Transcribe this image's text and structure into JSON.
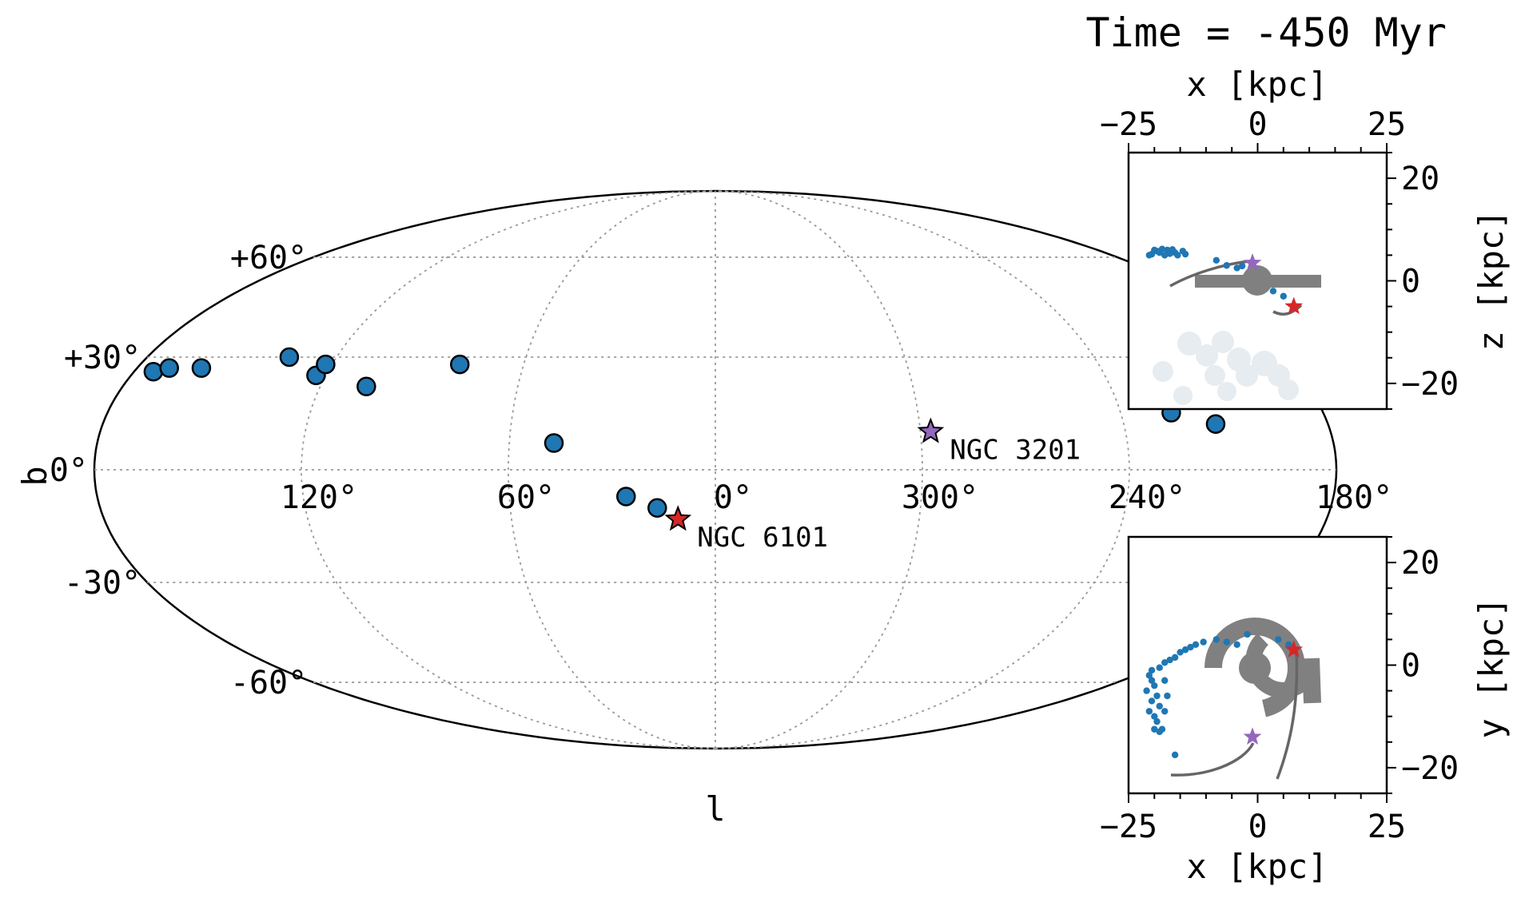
{
  "title": "Time = -450 Myr",
  "chart_data": [
    {
      "type": "scatter",
      "projection": "mollweide",
      "xlabel": "l",
      "ylabel": "b",
      "grid": true,
      "x_tick_labels": [
        "120°",
        "60°",
        "0°",
        "300°",
        "240°",
        "180°"
      ],
      "x_tick_values": [
        120,
        60,
        0,
        300,
        240,
        180
      ],
      "y_tick_labels": [
        "+60°",
        "+30°",
        "0°",
        "-30°",
        "-60°"
      ],
      "y_tick_values": [
        60,
        30,
        0,
        -30,
        -60
      ],
      "series": [
        {
          "marker": "circle",
          "color": "#1f77b4",
          "points": [
            {
              "l": 174,
              "b": 26
            },
            {
              "l": 170,
              "b": 27
            },
            {
              "l": 160,
              "b": 27
            },
            {
              "l": 135,
              "b": 30
            },
            {
              "l": 123,
              "b": 25
            },
            {
              "l": 122,
              "b": 28
            },
            {
              "l": 106,
              "b": 22
            },
            {
              "l": 80,
              "b": 28
            },
            {
              "l": 47,
              "b": 7
            },
            {
              "l": 26,
              "b": -7
            },
            {
              "l": 17,
              "b": -10
            },
            {
              "l": 225,
              "b": 15
            },
            {
              "l": 219,
              "b": 19
            },
            {
              "l": 213,
              "b": 12
            }
          ]
        },
        {
          "marker": "star",
          "color": "#d62728",
          "points": [
            {
              "l": 11,
              "b": -13,
              "label": "NGC 6101"
            }
          ]
        },
        {
          "marker": "star",
          "color": "#9467bd",
          "points": [
            {
              "l": 297,
              "b": 10,
              "label": "NGC 3201"
            }
          ]
        }
      ]
    },
    {
      "type": "scatter",
      "panel": "x-z",
      "xlabel": "x [kpc]",
      "ylabel": "z [kpc]",
      "xlim": [
        -25,
        25
      ],
      "ylim": [
        -25,
        25
      ],
      "x_tick_labels": [
        "−25",
        "0",
        "25"
      ],
      "x_tick_values": [
        -25,
        0,
        25
      ],
      "y_tick_labels": [
        "20",
        "0",
        "−20"
      ],
      "y_tick_values": [
        20,
        0,
        -20
      ],
      "series": [
        {
          "marker": "dot",
          "color": "#1f77b4",
          "points": [
            [
              -21,
              5
            ],
            [
              -20,
              6
            ],
            [
              -19,
              5.5
            ],
            [
              -18.5,
              6.2
            ],
            [
              -18,
              5
            ],
            [
              -17.5,
              6
            ],
            [
              -17,
              5.3
            ],
            [
              -16.5,
              6.1
            ],
            [
              -16,
              5.5
            ],
            [
              -15.5,
              5
            ],
            [
              -14.5,
              5.8
            ],
            [
              -14,
              5.2
            ],
            [
              -19.5,
              5.8
            ],
            [
              -20.5,
              5.2
            ],
            [
              -8,
              4
            ],
            [
              -6,
              3
            ],
            [
              -4,
              2.5
            ],
            [
              -3,
              2.9
            ],
            [
              3,
              -2
            ],
            [
              5,
              -3
            ]
          ]
        },
        {
          "marker": "star",
          "color": "#d62728",
          "points": [
            [
              7,
              -5
            ]
          ]
        },
        {
          "marker": "star",
          "color": "#9467bd",
          "points": [
            [
              -1,
              3.5
            ]
          ]
        }
      ]
    },
    {
      "type": "scatter",
      "panel": "x-y",
      "xlabel": "x [kpc]",
      "ylabel": "y [kpc]",
      "xlim": [
        -25,
        25
      ],
      "ylim": [
        -25,
        25
      ],
      "x_tick_labels": [
        "−25",
        "0",
        "25"
      ],
      "x_tick_values": [
        -25,
        0,
        25
      ],
      "y_tick_labels": [
        "20",
        "0",
        "−20"
      ],
      "y_tick_values": [
        20,
        0,
        -20
      ],
      "series": [
        {
          "marker": "dot",
          "color": "#1f77b4",
          "points": [
            [
              -21,
              -2
            ],
            [
              -20.5,
              -3
            ],
            [
              -20,
              -4
            ],
            [
              -21.5,
              -5
            ],
            [
              -19.5,
              -6
            ],
            [
              -20.5,
              -7
            ],
            [
              -19,
              -8
            ],
            [
              -21,
              -9
            ],
            [
              -20,
              -10
            ],
            [
              -19.5,
              -11
            ],
            [
              -18.5,
              -12.5
            ],
            [
              -20,
              -12.5
            ],
            [
              -19,
              -13
            ],
            [
              -20.5,
              -1
            ],
            [
              -19,
              -0.5
            ],
            [
              -18,
              0.5
            ],
            [
              -17,
              1
            ],
            [
              -16,
              1.5
            ],
            [
              -15,
              2.5
            ],
            [
              -14,
              3
            ],
            [
              -13,
              3.5
            ],
            [
              -12,
              4
            ],
            [
              -10.5,
              4.5
            ],
            [
              -8,
              5
            ],
            [
              -6,
              4.5
            ],
            [
              -4,
              4
            ],
            [
              -2,
              6
            ],
            [
              -18,
              -3
            ],
            [
              -17.5,
              -6
            ],
            [
              -18,
              -9
            ],
            [
              -16,
              -17.5
            ],
            [
              6,
              4
            ],
            [
              4,
              5
            ]
          ]
        },
        {
          "marker": "star",
          "color": "#d62728",
          "points": [
            [
              7,
              3
            ]
          ]
        },
        {
          "marker": "star",
          "color": "#9467bd",
          "points": [
            [
              -1,
              -14
            ]
          ]
        }
      ]
    }
  ]
}
